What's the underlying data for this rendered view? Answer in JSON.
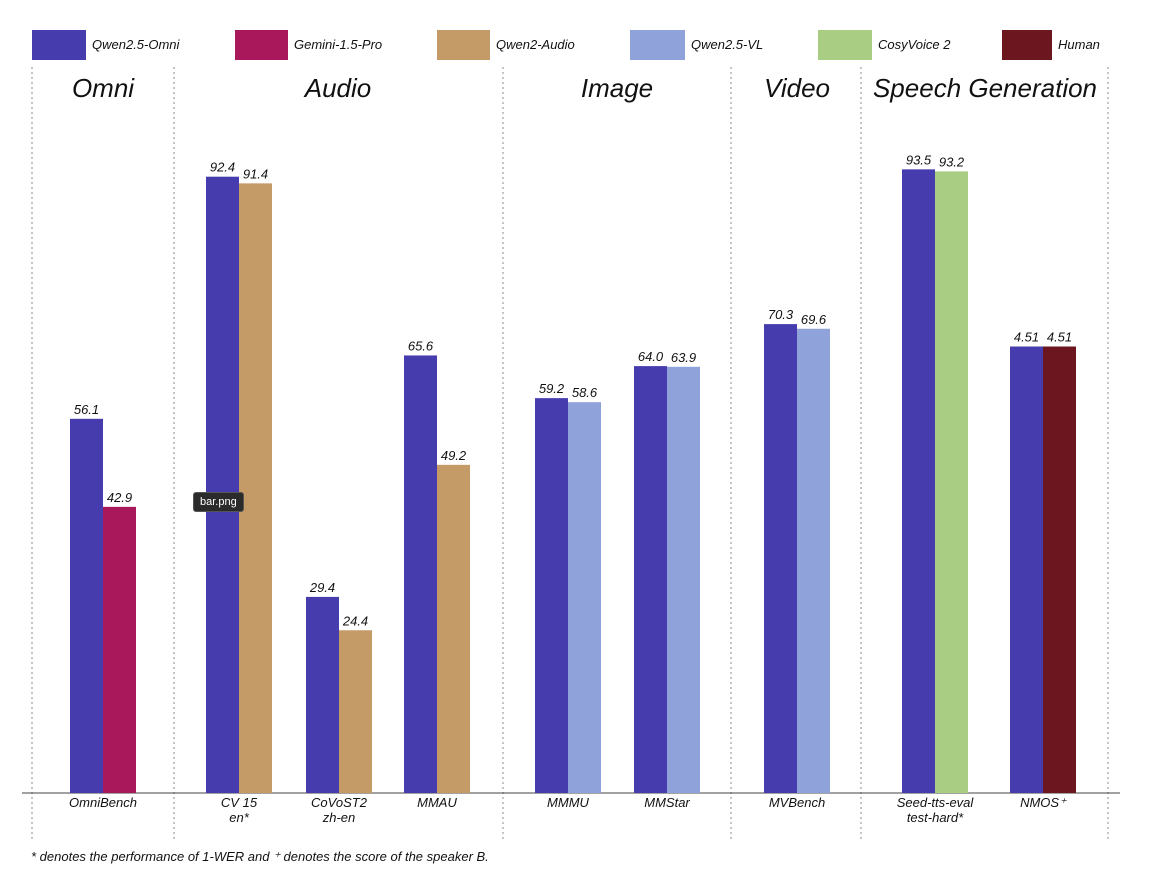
{
  "colors": {
    "Qwen2.5-Omni": "#473cad",
    "Gemini-1.5-Pro": "#a9185a",
    "Qwen2-Audio": "#c49a67",
    "Qwen2.5-VL": "#8fa3da",
    "CosyVoice 2": "#a9cd82",
    "Human": "#6c1620"
  },
  "legend": [
    "Qwen2.5-Omni",
    "Gemini-1.5-Pro",
    "Qwen2-Audio",
    "Qwen2.5-VL",
    "CosyVoice 2",
    "Human"
  ],
  "footnote": "* denotes the performance of 1-WER and ⁺ denotes the score of the speaker B.",
  "tooltip": "bar.png",
  "chart_data": {
    "type": "bar",
    "grid": false,
    "legend_position": "top",
    "ylim": [
      0,
      100
    ],
    "sections": [
      {
        "title": "Omni",
        "benchmarks": [
          {
            "label": [
              "OmniBench"
            ],
            "bars": [
              {
                "series": "Qwen2.5-Omni",
                "value": 56.1,
                "label": "56.1"
              },
              {
                "series": "Gemini-1.5-Pro",
                "value": 42.9,
                "label": "42.9"
              }
            ]
          }
        ]
      },
      {
        "title": "Audio",
        "benchmarks": [
          {
            "label": [
              "CV 15",
              "en*"
            ],
            "bars": [
              {
                "series": "Qwen2.5-Omni",
                "value": 92.4,
                "label": "92.4"
              },
              {
                "series": "Qwen2-Audio",
                "value": 91.4,
                "label": "91.4"
              }
            ]
          },
          {
            "label": [
              "CoVoST2",
              "zh-en"
            ],
            "bars": [
              {
                "series": "Qwen2.5-Omni",
                "value": 29.4,
                "label": "29.4"
              },
              {
                "series": "Qwen2-Audio",
                "value": 24.4,
                "label": "24.4"
              }
            ]
          },
          {
            "label": [
              "MMAU"
            ],
            "bars": [
              {
                "series": "Qwen2.5-Omni",
                "value": 65.6,
                "label": "65.6"
              },
              {
                "series": "Qwen2-Audio",
                "value": 49.2,
                "label": "49.2"
              }
            ]
          }
        ]
      },
      {
        "title": "Image",
        "benchmarks": [
          {
            "label": [
              "MMMU"
            ],
            "bars": [
              {
                "series": "Qwen2.5-Omni",
                "value": 59.2,
                "label": "59.2"
              },
              {
                "series": "Qwen2.5-VL",
                "value": 58.6,
                "label": "58.6"
              }
            ]
          },
          {
            "label": [
              "MMStar"
            ],
            "bars": [
              {
                "series": "Qwen2.5-Omni",
                "value": 64.0,
                "label": "64.0"
              },
              {
                "series": "Qwen2.5-VL",
                "value": 63.9,
                "label": "63.9"
              }
            ]
          }
        ]
      },
      {
        "title": "Video",
        "benchmarks": [
          {
            "label": [
              "MVBench"
            ],
            "bars": [
              {
                "series": "Qwen2.5-Omni",
                "value": 70.3,
                "label": "70.3"
              },
              {
                "series": "Qwen2.5-VL",
                "value": 69.6,
                "label": "69.6"
              }
            ]
          }
        ]
      },
      {
        "title": "Speech Generation",
        "benchmarks": [
          {
            "label": [
              "Seed-tts-eval",
              "test-hard*"
            ],
            "bars": [
              {
                "series": "Qwen2.5-Omni",
                "value": 93.5,
                "label": "93.5"
              },
              {
                "series": "CosyVoice 2",
                "value": 93.2,
                "label": "93.2"
              }
            ]
          },
          {
            "label": [
              "NMOS⁺"
            ],
            "bars": [
              {
                "series": "Qwen2.5-Omni",
                "value": 4.51,
                "label": "4.51"
              },
              {
                "series": "Human",
                "value": 4.51,
                "label": "4.51"
              }
            ]
          }
        ]
      }
    ]
  }
}
